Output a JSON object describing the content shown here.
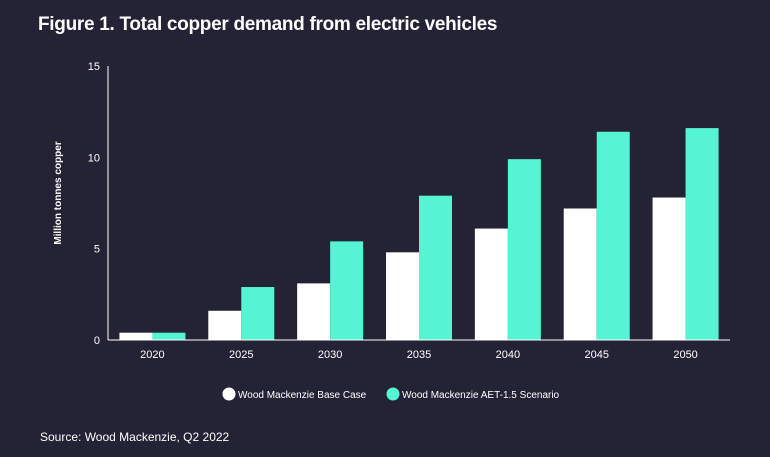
{
  "header": {
    "title": "Figure 1. Total copper demand from electric vehicles"
  },
  "footer": {
    "source": "Source: Wood Mackenzie, Q2 2022"
  },
  "colors": {
    "background": "#242235",
    "base_case": "#ffffff",
    "scenario": "#55f5d3",
    "axis": "#ffffff"
  },
  "chart_data": {
    "type": "bar",
    "title": "Figure 1. Total copper demand from electric vehicles",
    "xlabel": "",
    "ylabel": "Million tonnes copper",
    "ylim": [
      0,
      15
    ],
    "yticks": [
      0,
      5,
      10,
      15
    ],
    "grid": false,
    "legend_position": "bottom",
    "categories": [
      "2020",
      "2025",
      "2030",
      "2035",
      "2040",
      "2045",
      "2050"
    ],
    "series": [
      {
        "name": "Wood Mackenzie Base Case",
        "color": "#ffffff",
        "values": [
          0.4,
          1.6,
          3.1,
          4.8,
          6.1,
          7.2,
          7.8
        ]
      },
      {
        "name": "Wood Mackenzie AET-1.5 Scenario",
        "color": "#55f5d3",
        "values": [
          0.4,
          2.9,
          5.4,
          7.9,
          9.9,
          11.4,
          11.6
        ]
      }
    ]
  }
}
